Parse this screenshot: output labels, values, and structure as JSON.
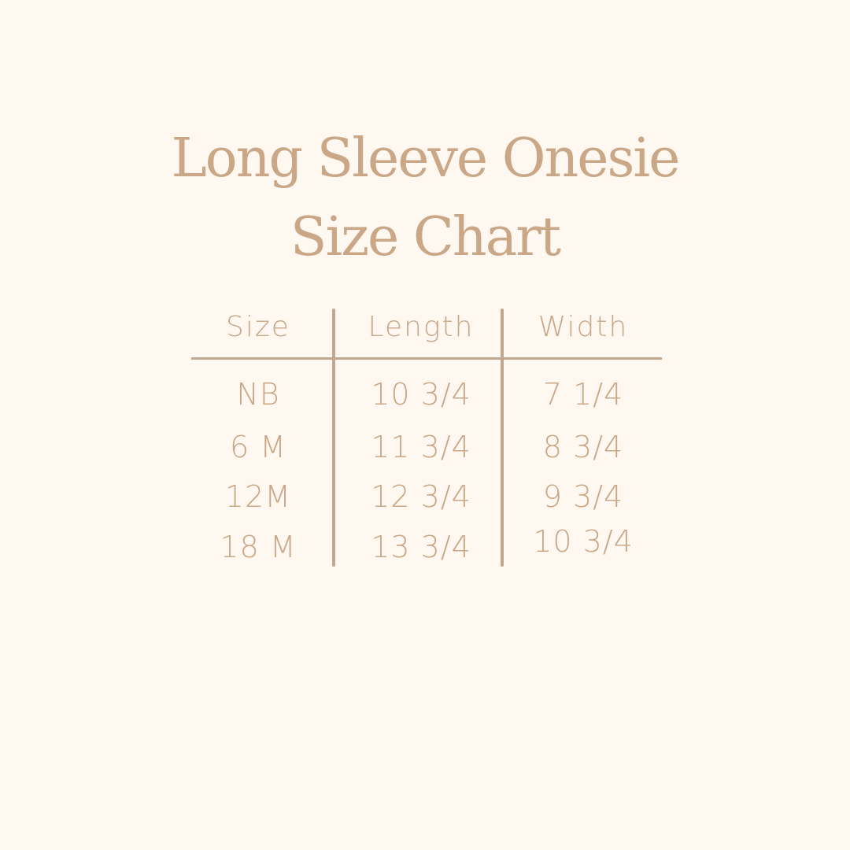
{
  "title": {
    "line1": "Long Sleeve Onesie",
    "line2": "Size Chart"
  },
  "colors": {
    "background": "#fef8f1",
    "text": "#c9a787",
    "lines": "#c0a892"
  },
  "table": {
    "headers": [
      "Size",
      "Length",
      "Width"
    ],
    "rows": [
      [
        "NB",
        "10 3/4",
        "7 1/4"
      ],
      [
        "6 M",
        "11 3/4",
        "8 3/4"
      ],
      [
        "12M",
        "12 3/4",
        "9 3/4"
      ],
      [
        "18 M",
        "13 3/4",
        "10 3/4"
      ]
    ]
  }
}
